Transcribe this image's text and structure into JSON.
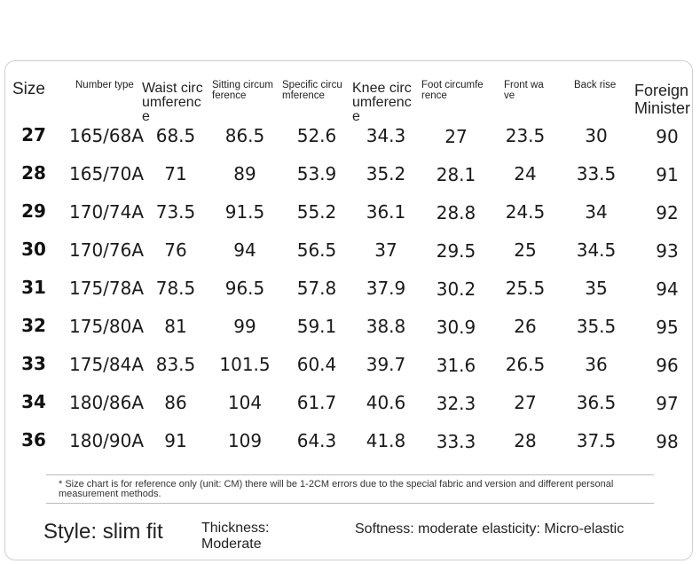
{
  "headers": {
    "size": "Size",
    "number_type": "Number type",
    "waist": "Waist circumference",
    "sitting": "Sitting circumference",
    "specific": "Specific circumference",
    "knee": "Knee circumference",
    "foot": "Foot circumference",
    "front_wave": "Front wave",
    "back_rise": "Back rise",
    "foreign": "Foreign Minister"
  },
  "rows": [
    {
      "size": "27",
      "number_type": "165/68A",
      "waist": "68.5",
      "sitting": "86.5",
      "specific": "52.6",
      "knee": "34.3",
      "foot": "27",
      "front_wave": "23.5",
      "back_rise": "30",
      "foreign": "90"
    },
    {
      "size": "28",
      "number_type": "165/70A",
      "waist": "71",
      "sitting": "89",
      "specific": "53.9",
      "knee": "35.2",
      "foot": "28.1",
      "front_wave": "24",
      "back_rise": "33.5",
      "foreign": "91"
    },
    {
      "size": "29",
      "number_type": "170/74A",
      "waist": "73.5",
      "sitting": "91.5",
      "specific": "55.2",
      "knee": "36.1",
      "foot": "28.8",
      "front_wave": "24.5",
      "back_rise": "34",
      "foreign": "92"
    },
    {
      "size": "30",
      "number_type": "170/76A",
      "waist": "76",
      "sitting": "94",
      "specific": "56.5",
      "knee": "37",
      "foot": "29.5",
      "front_wave": "25",
      "back_rise": "34.5",
      "foreign": "93"
    },
    {
      "size": "31",
      "number_type": "175/78A",
      "waist": "78.5",
      "sitting": "96.5",
      "specific": "57.8",
      "knee": "37.9",
      "foot": "30.2",
      "front_wave": "25.5",
      "back_rise": "35",
      "foreign": "94"
    },
    {
      "size": "32",
      "number_type": "175/80A",
      "waist": "81",
      "sitting": "99",
      "specific": "59.1",
      "knee": "38.8",
      "foot": "30.9",
      "front_wave": "26",
      "back_rise": "35.5",
      "foreign": "95"
    },
    {
      "size": "33",
      "number_type": "175/84A",
      "waist": "83.5",
      "sitting": "101.5",
      "specific": "60.4",
      "knee": "39.7",
      "foot": "31.6",
      "front_wave": "26.5",
      "back_rise": "36",
      "foreign": "96"
    },
    {
      "size": "34",
      "number_type": "180/86A",
      "waist": "86",
      "sitting": "104",
      "specific": "61.7",
      "knee": "40.6",
      "foot": "32.3",
      "front_wave": "27",
      "back_rise": "36.5",
      "foreign": "97"
    },
    {
      "size": "36",
      "number_type": "180/90A",
      "waist": "91",
      "sitting": "109",
      "specific": "64.3",
      "knee": "41.8",
      "foot": "33.3",
      "front_wave": "28",
      "back_rise": "37.5",
      "foreign": "98"
    }
  ],
  "note": "* Size chart is for reference only (unit: CM) there will be 1-2CM errors due to the special fabric and version and different personal measurement methods.",
  "footer": {
    "style": "Style: slim fit",
    "thickness": "Thickness: Moderate",
    "softness": "Softness: moderate elasticity: Micro-elastic"
  }
}
